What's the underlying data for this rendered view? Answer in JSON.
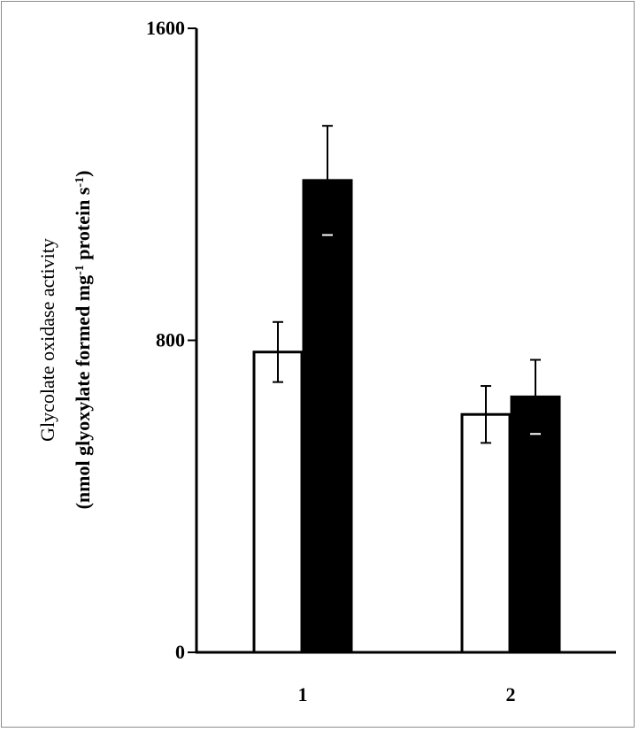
{
  "chart_data": {
    "type": "bar",
    "categories": [
      "1",
      "2"
    ],
    "series": [
      {
        "fill": "#ffffff",
        "values": [
          770,
          610
        ],
        "errors": [
          77,
          73
        ]
      },
      {
        "fill": "#000000",
        "values": [
          1210,
          655
        ],
        "errors": [
          140,
          95
        ]
      }
    ],
    "ylabel_line1": "Glycolate oxidase activity",
    "ylabel_line2_pre": "(nmol glyoxylate formed mg",
    "ylabel_line2_sup1": "-1",
    "ylabel_line2_mid": " protein s",
    "ylabel_line2_sup2": "-1",
    "ylabel_line2_post": ")",
    "yticks": [
      "0",
      "800",
      "1600"
    ],
    "ylim": [
      0,
      1600
    ],
    "grid": false,
    "legend": "none"
  }
}
